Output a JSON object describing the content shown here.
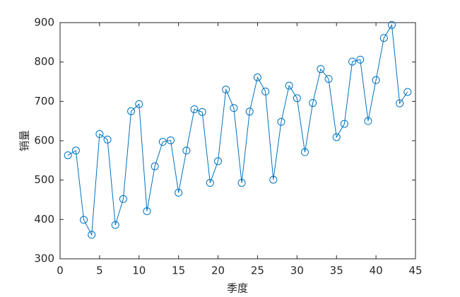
{
  "chart_data": {
    "type": "line",
    "x_label": "季度",
    "y_label": "销量",
    "x": [
      1,
      2,
      3,
      4,
      5,
      6,
      7,
      8,
      9,
      10,
      11,
      12,
      13,
      14,
      15,
      16,
      17,
      18,
      19,
      20,
      21,
      22,
      23,
      24,
      25,
      26,
      27,
      28,
      29,
      30,
      31,
      32,
      33,
      34,
      35,
      36,
      37,
      38,
      39,
      40,
      41,
      42,
      43,
      44
    ],
    "series": [
      {
        "color": "#0072bd",
        "marker": "circle",
        "values": [
          563,
          575,
          399,
          361,
          617,
          603,
          386,
          452,
          675,
          693,
          421,
          535,
          597,
          601,
          468,
          575,
          680,
          673,
          493,
          548,
          730,
          683,
          493,
          674,
          761,
          725,
          501,
          648,
          740,
          708,
          571,
          696,
          782,
          757,
          609,
          643,
          801,
          806,
          650,
          754,
          861,
          894,
          695,
          724
        ]
      }
    ],
    "xlim": [
      0,
      45
    ],
    "xticks": [
      0,
      5,
      10,
      15,
      20,
      25,
      30,
      35,
      40,
      45
    ],
    "ylim": [
      300,
      900
    ],
    "yticks": [
      300,
      400,
      500,
      600,
      700,
      800,
      900
    ],
    "grid": false
  }
}
